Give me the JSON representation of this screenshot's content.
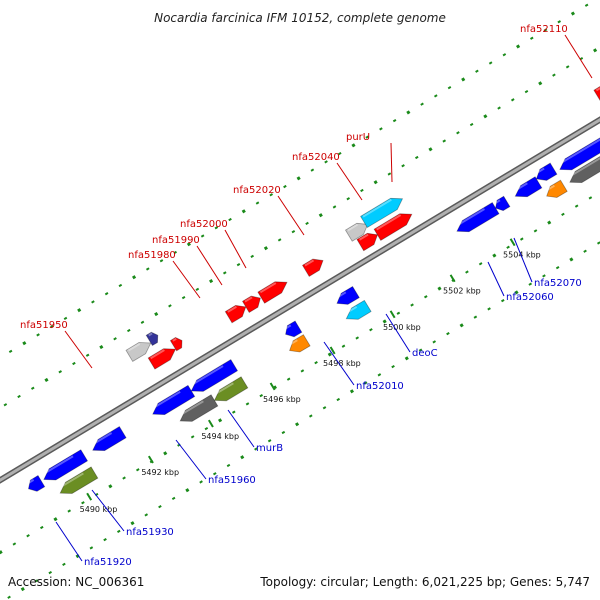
{
  "title": "Nocardia farcinica IFM 10152, complete genome",
  "accession": "Accession: NC_006361",
  "summary": "Topology: circular; Length: 6,021,225 bp; Genes: 5,747",
  "colors": {
    "red": "#ff0000",
    "blue": "#0000ff",
    "cyan": "#00ccff",
    "orange": "#ff8800",
    "olive": "#6b8e23",
    "gray": "#c8c8c8",
    "darkgray": "#606060",
    "navy": "#333399",
    "label_red": "#cc0000",
    "label_blue": "#0000cc",
    "tick_green": "#1a8a1a",
    "backbone": "#8a8a8a"
  },
  "ticks": [
    {
      "label": "5490 kbp"
    },
    {
      "label": "5492 kbp"
    },
    {
      "label": "5494 kbp"
    },
    {
      "label": "5496 kbp"
    },
    {
      "label": "5498 kbp"
    },
    {
      "label": "5500 kbp"
    },
    {
      "label": "5502 kbp"
    },
    {
      "label": "5504 kbp"
    }
  ],
  "forward_labels": [
    {
      "name": "nfa51950"
    },
    {
      "name": "nfa51980"
    },
    {
      "name": "nfa51990"
    },
    {
      "name": "nfa52000"
    },
    {
      "name": "nfa52020"
    },
    {
      "name": "nfa52040"
    },
    {
      "name": "purU"
    },
    {
      "name": "nfa52110"
    }
  ],
  "reverse_labels": [
    {
      "name": "nfa51920"
    },
    {
      "name": "nfa51930"
    },
    {
      "name": "nfa51960"
    },
    {
      "name": "murB"
    },
    {
      "name": "nfa52010"
    },
    {
      "name": "deoC"
    },
    {
      "name": "nfa52060"
    },
    {
      "name": "nfa52070"
    }
  ]
}
